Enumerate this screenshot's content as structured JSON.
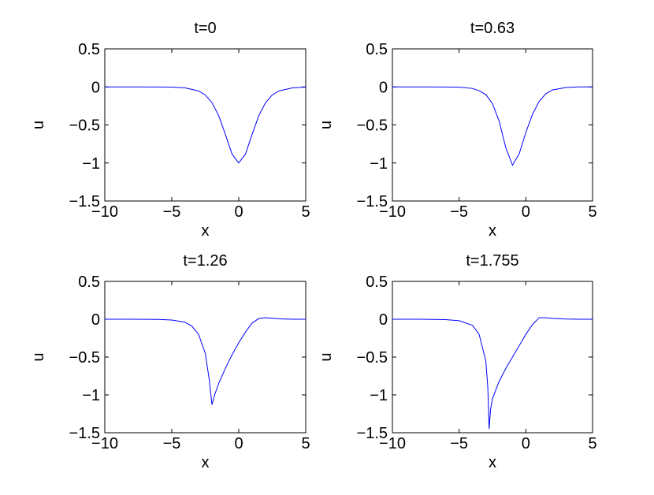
{
  "chart_data": [
    {
      "type": "line",
      "title": "t=0",
      "xlabel": "x",
      "ylabel": "u",
      "xlim": [
        -10,
        5
      ],
      "ylim": [
        -1.5,
        0.5
      ],
      "xticks": [
        {
          "value": -10,
          "label": "−10"
        },
        {
          "value": -5,
          "label": "−5"
        },
        0,
        5
      ],
      "yticks": [
        {
          "value": -1.5,
          "label": "−1.5"
        },
        {
          "value": -1,
          "label": "−1"
        },
        {
          "value": -0.5,
          "label": "−0.5"
        },
        0,
        0.5
      ],
      "series": [
        {
          "color": "#0000ff",
          "x": [
            -10,
            -8,
            -6,
            -5,
            -4,
            -3,
            -2.5,
            -2,
            -1.5,
            -1,
            -0.5,
            0,
            0.5,
            1,
            1.5,
            2,
            2.5,
            3,
            4,
            5
          ],
          "values": [
            0,
            0,
            -0.001,
            -0.003,
            -0.013,
            -0.053,
            -0.106,
            -0.207,
            -0.376,
            -0.624,
            -0.883,
            -1,
            -0.883,
            -0.624,
            -0.376,
            -0.207,
            -0.106,
            -0.053,
            -0.013,
            -0.003
          ]
        }
      ]
    },
    {
      "type": "line",
      "title": "t=0.63",
      "xlabel": "x",
      "ylabel": "u",
      "xlim": [
        -10,
        5
      ],
      "ylim": [
        -1.5,
        0.5
      ],
      "xticks": [
        {
          "value": -10,
          "label": "−10"
        },
        {
          "value": -5,
          "label": "−5"
        },
        0,
        5
      ],
      "yticks": [
        {
          "value": -1.5,
          "label": "−1.5"
        },
        {
          "value": -1,
          "label": "−1"
        },
        {
          "value": -0.5,
          "label": "−0.5"
        },
        0,
        0.5
      ],
      "series": [
        {
          "color": "#0000ff",
          "x": [
            -10,
            -8,
            -6,
            -5,
            -4,
            -3.5,
            -3,
            -2.5,
            -2,
            -1.5,
            -1,
            -0.5,
            0,
            0.5,
            1,
            1.5,
            2,
            3,
            4,
            5
          ],
          "values": [
            0,
            0,
            -0.001,
            -0.004,
            -0.02,
            -0.05,
            -0.1,
            -0.22,
            -0.45,
            -0.8,
            -1.03,
            -0.88,
            -0.6,
            -0.36,
            -0.19,
            -0.09,
            -0.04,
            -0.008,
            0,
            0
          ]
        }
      ]
    },
    {
      "type": "line",
      "title": "t=1.26",
      "xlabel": "x",
      "ylabel": "u",
      "xlim": [
        -10,
        5
      ],
      "ylim": [
        -1.5,
        0.5
      ],
      "xticks": [
        {
          "value": -10,
          "label": "−10"
        },
        {
          "value": -5,
          "label": "−5"
        },
        0,
        5
      ],
      "yticks": [
        {
          "value": -1.5,
          "label": "−1.5"
        },
        {
          "value": -1,
          "label": "−1"
        },
        {
          "value": -0.5,
          "label": "−0.5"
        },
        0,
        0.5
      ],
      "series": [
        {
          "color": "#0000ff",
          "x": [
            -10,
            -8,
            -6,
            -5,
            -4,
            -3.5,
            -3,
            -2.5,
            -2.2,
            -2,
            -1.8,
            -1.5,
            -1,
            -0.5,
            0,
            0.5,
            1,
            1.5,
            2,
            3,
            4,
            5
          ],
          "values": [
            0,
            0,
            -0.002,
            -0.01,
            -0.04,
            -0.09,
            -0.2,
            -0.45,
            -0.8,
            -1.13,
            -1,
            -0.85,
            -0.65,
            -0.47,
            -0.31,
            -0.17,
            -0.05,
            0.01,
            0.02,
            0.005,
            0,
            0
          ]
        }
      ]
    },
    {
      "type": "line",
      "title": "t=1.755",
      "xlabel": "x",
      "ylabel": "u",
      "xlim": [
        -10,
        5
      ],
      "ylim": [
        -1.5,
        0.5
      ],
      "xticks": [
        {
          "value": -10,
          "label": "−10"
        },
        {
          "value": -5,
          "label": "−5"
        },
        0,
        5
      ],
      "yticks": [
        {
          "value": -1.5,
          "label": "−1.5"
        },
        {
          "value": -1,
          "label": "−1"
        },
        {
          "value": -0.5,
          "label": "−0.5"
        },
        0,
        0.5
      ],
      "series": [
        {
          "color": "#0000ff",
          "x": [
            -10,
            -8,
            -6,
            -5,
            -4,
            -3.5,
            -3,
            -2.85,
            -2.75,
            -2.65,
            -2.5,
            -2,
            -1.5,
            -1,
            -0.5,
            0,
            0.5,
            1,
            1.5,
            2,
            3,
            4,
            5
          ],
          "values": [
            0,
            0,
            -0.005,
            -0.02,
            -0.08,
            -0.2,
            -0.55,
            -0.9,
            -1.45,
            -1.2,
            -1.05,
            -0.82,
            -0.65,
            -0.5,
            -0.35,
            -0.2,
            -0.07,
            0.02,
            0.02,
            0.01,
            0.002,
            0,
            0
          ]
        }
      ]
    }
  ]
}
